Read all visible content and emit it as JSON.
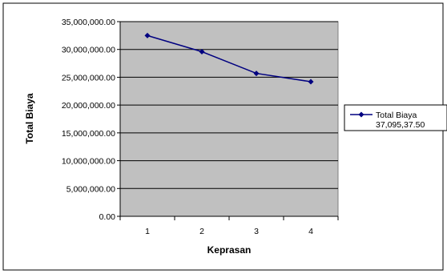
{
  "chart_data": {
    "type": "line",
    "title": "",
    "xlabel": "Keprasan",
    "ylabel": "Total Biaya",
    "categories": [
      "1",
      "2",
      "3",
      "4"
    ],
    "series": [
      {
        "name": "Total Biaya 37,095,37.50",
        "values": [
          32500000,
          29600000,
          25700000,
          24200000
        ]
      }
    ],
    "ylim": [
      0,
      35000000
    ],
    "yticks": [
      0,
      5000000,
      10000000,
      15000000,
      20000000,
      25000000,
      30000000,
      35000000
    ],
    "ytick_labels": [
      "0.00",
      "5,000,000.00",
      "10,000,000.00",
      "15,000,000.00",
      "20,000,000.00",
      "25,000,000.00",
      "30,000,000.00",
      "35,000,000.00"
    ],
    "grid": true,
    "legend_position": "right",
    "colors": {
      "plot_background": "#c0c0c0",
      "series_line": "#000080",
      "gridline": "#000000",
      "frame": "#000000"
    }
  },
  "legend": {
    "line1": "Total Biaya",
    "line2": "37,095,37.50"
  }
}
